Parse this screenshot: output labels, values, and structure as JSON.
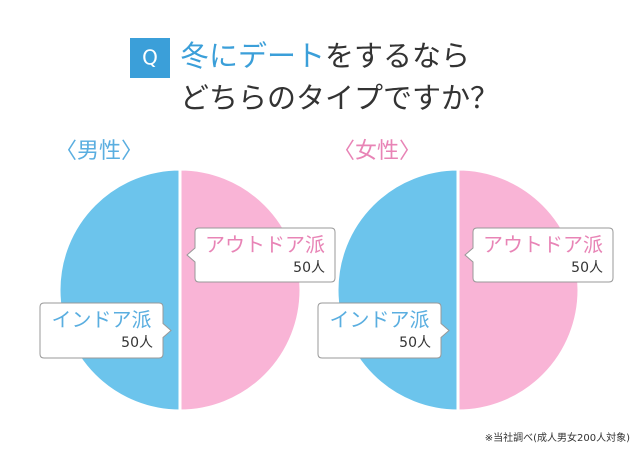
{
  "header": {
    "badge": "Q",
    "title": [
      {
        "text": "冬に",
        "color": "#3b9fd9"
      },
      {
        "text": "デート",
        "color": "#3b9fd9"
      },
      {
        "text": "をするなら",
        "color": "#333333"
      }
    ],
    "title_line2": "どちらのタイプですか？"
  },
  "chart_data": [
    {
      "type": "pie",
      "title": "〈男性〉",
      "title_color": "#5aaee0",
      "categories": [
        "インドア派",
        "アウトドア派"
      ],
      "values": [
        50,
        50
      ],
      "value_labels": [
        "50人",
        "50人"
      ],
      "colors": [
        "#6cc4ec",
        "#f9b4d6"
      ],
      "label_colors": [
        "#5aaee0",
        "#e884b6"
      ]
    },
    {
      "type": "pie",
      "title": "〈女性〉",
      "title_color": "#e884b6",
      "categories": [
        "インドア派",
        "アウトドア派"
      ],
      "values": [
        50,
        50
      ],
      "value_labels": [
        "50人",
        "50人"
      ],
      "colors": [
        "#6cc4ec",
        "#f9b4d6"
      ],
      "label_colors": [
        "#5aaee0",
        "#e884b6"
      ]
    }
  ],
  "footnote": "※当社調べ(成人男女200人対象)"
}
